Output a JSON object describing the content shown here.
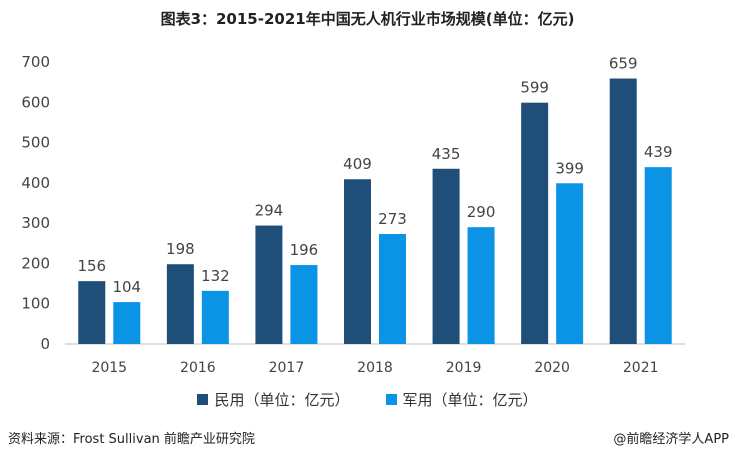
{
  "chart_data": {
    "type": "bar",
    "title": "图表3：2015-2021年中国无人机行业市场规模(单位：亿元)",
    "categories": [
      "2015",
      "2016",
      "2017",
      "2018",
      "2019",
      "2020",
      "2021"
    ],
    "series": [
      {
        "name": "民用（单位：亿元）",
        "values": [
          156,
          198,
          294,
          409,
          435,
          599,
          659
        ],
        "color": "#1f4e79"
      },
      {
        "name": "军用（单位：亿元）",
        "values": [
          104,
          132,
          196,
          273,
          290,
          399,
          439
        ],
        "color": "#0b93e6"
      }
    ],
    "ylim": [
      0,
      700
    ],
    "yticks": [
      0,
      100,
      200,
      300,
      400,
      500,
      600,
      700
    ],
    "grid": false,
    "legend_position": "bottom"
  },
  "footer": {
    "source": "资料来源：Frost Sullivan 前瞻产业研究院",
    "brand": "@前瞻经济学人APP"
  }
}
